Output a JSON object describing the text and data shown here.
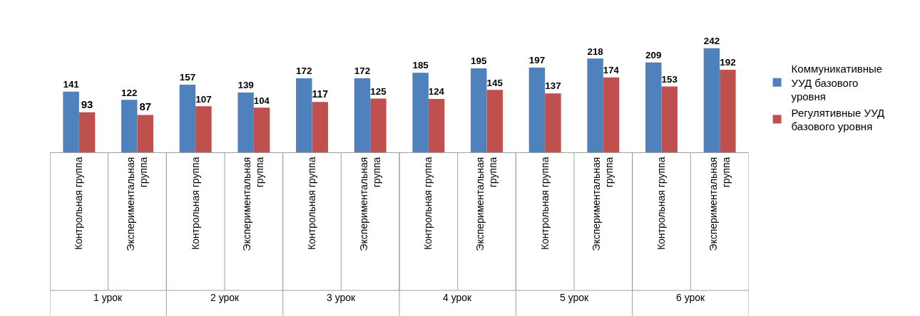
{
  "chart_data": {
    "type": "bar",
    "categories": [
      "Контрольная группа",
      "Экспериментальная группа",
      "Контрольная группа",
      "Экспериментальная группа",
      "Контрольная группа",
      "Экспериментальная группа",
      "Контрольная группа",
      "Экспериментальная группа",
      "Контрольная группа",
      "Экспериментальная группа",
      "Контрольная группа",
      "Экспериментальная группа"
    ],
    "series": [
      {
        "name": "Коммуникативные УУД базового уровня",
        "color": "#4f81bd",
        "values": [
          141,
          122,
          157,
          139,
          172,
          172,
          185,
          195,
          197,
          218,
          209,
          242
        ]
      },
      {
        "name": "Регулятивные УУД базового уровня",
        "color": "#c0504d",
        "values": [
          93,
          87,
          107,
          104,
          117,
          125,
          124,
          145,
          137,
          174,
          153,
          192
        ]
      }
    ],
    "annotations": [
      "1 урок",
      "2 урок",
      "3 урок",
      "4 урок",
      "5 урок",
      "6 урок"
    ],
    "data_labels": true,
    "legend": "right",
    "grid": false
  }
}
